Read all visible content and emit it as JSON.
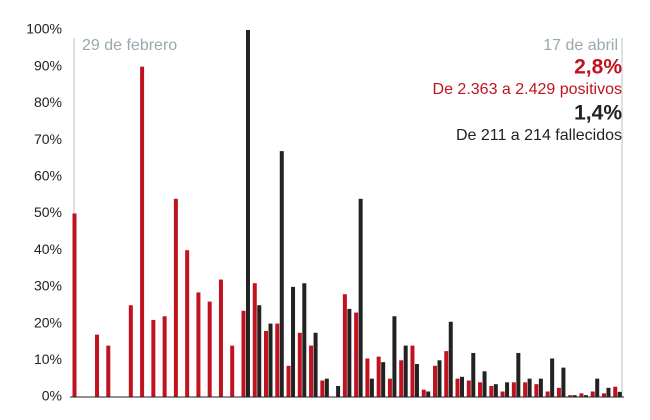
{
  "chart_data": {
    "type": "bar",
    "categories": [
      "29 de febrero",
      null,
      null,
      null,
      null,
      null,
      null,
      null,
      null,
      null,
      null,
      null,
      null,
      null,
      null,
      null,
      null,
      null,
      null,
      null,
      null,
      null,
      null,
      null,
      null,
      null,
      null,
      null,
      null,
      null,
      null,
      null,
      null,
      null,
      null,
      null,
      null,
      null,
      null,
      null,
      null,
      null,
      null,
      null,
      null,
      null,
      null,
      null,
      "17 de abril"
    ],
    "series": [
      {
        "color": "#c1121f",
        "values": [
          50,
          0,
          17,
          14,
          0,
          25,
          90,
          21,
          22,
          54,
          40,
          28.5,
          26,
          32,
          14,
          23.5,
          31,
          18,
          20,
          8.5,
          17.5,
          14,
          4.5,
          0,
          28,
          23,
          10.5,
          11,
          5,
          10,
          14,
          2,
          8.5,
          12.5,
          5,
          4.5,
          4,
          3,
          1.5,
          4,
          4,
          3.5,
          1.5,
          2.5,
          0.5,
          1,
          1.5,
          1,
          2.8
        ]
      },
      {
        "color": "#222222",
        "values": [
          null,
          null,
          null,
          null,
          null,
          null,
          null,
          null,
          null,
          null,
          null,
          null,
          null,
          null,
          null,
          100,
          25,
          20,
          67,
          30,
          31,
          17.5,
          5,
          3,
          24,
          54,
          5,
          9.5,
          22,
          14,
          9,
          1.5,
          10,
          20.5,
          5.5,
          12,
          7,
          3.5,
          4,
          12,
          5,
          5,
          10.5,
          8,
          0.5,
          0.5,
          5,
          2.5,
          1.4
        ]
      }
    ],
    "ylim": [
      0,
      100
    ],
    "yticks": [
      {
        "value": 0,
        "label": "0%"
      },
      {
        "value": 10,
        "label": "10%"
      },
      {
        "value": 20,
        "label": "20%"
      },
      {
        "value": 30,
        "label": "30%"
      },
      {
        "value": 40,
        "label": "40%"
      },
      {
        "value": 50,
        "label": "50%"
      },
      {
        "value": 60,
        "label": "60%"
      },
      {
        "value": 70,
        "label": "70%"
      },
      {
        "value": 80,
        "label": "80%"
      },
      {
        "value": 90,
        "label": "90%"
      },
      {
        "value": 100,
        "label": "100%"
      }
    ],
    "grid": false,
    "annotations": [
      "2,8%",
      "De 2.363 a 2.429 positivos",
      "1,4%",
      "De 211 a 214 fallecidos"
    ]
  }
}
